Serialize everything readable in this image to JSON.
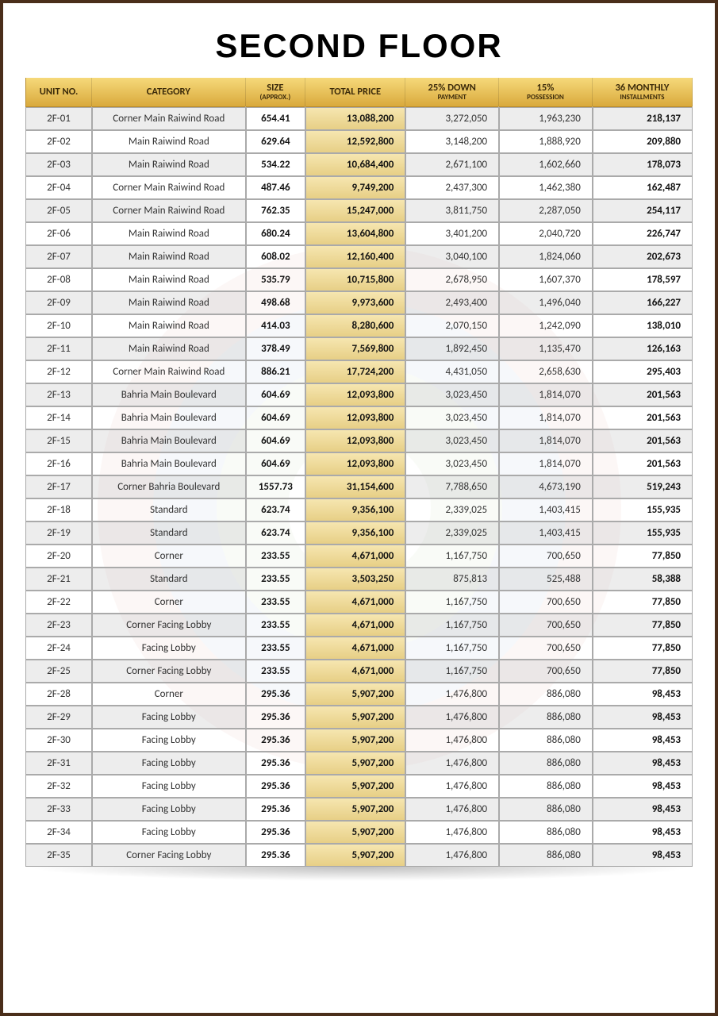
{
  "page_title": "SECOND FLOOR",
  "columns": [
    {
      "key": "unit",
      "label": "UNIT NO.",
      "sub": ""
    },
    {
      "key": "cat",
      "label": "CATEGORY",
      "sub": ""
    },
    {
      "key": "size",
      "label": "SIZE",
      "sub": "(APPROX.)"
    },
    {
      "key": "price",
      "label": "TOTAL PRICE",
      "sub": ""
    },
    {
      "key": "down",
      "label": "25% DOWN",
      "sub": "PAYMENT"
    },
    {
      "key": "poss",
      "label": "15%",
      "sub": "POSSESSION"
    },
    {
      "key": "inst",
      "label": "36 MONTHLY",
      "sub": "INSTALLMENTS"
    }
  ],
  "rows": [
    {
      "unit": "2F-01",
      "cat": "Corner Main Raiwind Road",
      "size": "654.41",
      "price": "13,088,200",
      "down": "3,272,050",
      "poss": "1,963,230",
      "inst": "218,137"
    },
    {
      "unit": "2F-02",
      "cat": "Main Raiwind Road",
      "size": "629.64",
      "price": "12,592,800",
      "down": "3,148,200",
      "poss": "1,888,920",
      "inst": "209,880"
    },
    {
      "unit": "2F-03",
      "cat": "Main Raiwind Road",
      "size": "534.22",
      "price": "10,684,400",
      "down": "2,671,100",
      "poss": "1,602,660",
      "inst": "178,073"
    },
    {
      "unit": "2F-04",
      "cat": "Corner Main Raiwind Road",
      "size": "487.46",
      "price": "9,749,200",
      "down": "2,437,300",
      "poss": "1,462,380",
      "inst": "162,487"
    },
    {
      "unit": "2F-05",
      "cat": "Corner Main Raiwind Road",
      "size": "762.35",
      "price": "15,247,000",
      "down": "3,811,750",
      "poss": "2,287,050",
      "inst": "254,117"
    },
    {
      "unit": "2F-06",
      "cat": "Main Raiwind Road",
      "size": "680.24",
      "price": "13,604,800",
      "down": "3,401,200",
      "poss": "2,040,720",
      "inst": "226,747"
    },
    {
      "unit": "2F-07",
      "cat": "Main Raiwind Road",
      "size": "608.02",
      "price": "12,160,400",
      "down": "3,040,100",
      "poss": "1,824,060",
      "inst": "202,673"
    },
    {
      "unit": "2F-08",
      "cat": "Main Raiwind Road",
      "size": "535.79",
      "price": "10,715,800",
      "down": "2,678,950",
      "poss": "1,607,370",
      "inst": "178,597"
    },
    {
      "unit": "2F-09",
      "cat": "Main Raiwind Road",
      "size": "498.68",
      "price": "9,973,600",
      "down": "2,493,400",
      "poss": "1,496,040",
      "inst": "166,227"
    },
    {
      "unit": "2F-10",
      "cat": "Main Raiwind Road",
      "size": "414.03",
      "price": "8,280,600",
      "down": "2,070,150",
      "poss": "1,242,090",
      "inst": "138,010"
    },
    {
      "unit": "2F-11",
      "cat": "Main Raiwind Road",
      "size": "378.49",
      "price": "7,569,800",
      "down": "1,892,450",
      "poss": "1,135,470",
      "inst": "126,163"
    },
    {
      "unit": "2F-12",
      "cat": "Corner Main Raiwind Road",
      "size": "886.21",
      "price": "17,724,200",
      "down": "4,431,050",
      "poss": "2,658,630",
      "inst": "295,403"
    },
    {
      "unit": "2F-13",
      "cat": "Bahria Main Boulevard",
      "size": "604.69",
      "price": "12,093,800",
      "down": "3,023,450",
      "poss": "1,814,070",
      "inst": "201,563"
    },
    {
      "unit": "2F-14",
      "cat": "Bahria Main Boulevard",
      "size": "604.69",
      "price": "12,093,800",
      "down": "3,023,450",
      "poss": "1,814,070",
      "inst": "201,563"
    },
    {
      "unit": "2F-15",
      "cat": "Bahria Main Boulevard",
      "size": "604.69",
      "price": "12,093,800",
      "down": "3,023,450",
      "poss": "1,814,070",
      "inst": "201,563"
    },
    {
      "unit": "2F-16",
      "cat": "Bahria Main Boulevard",
      "size": "604.69",
      "price": "12,093,800",
      "down": "3,023,450",
      "poss": "1,814,070",
      "inst": "201,563"
    },
    {
      "unit": "2F-17",
      "cat": "Corner Bahria Boulevard",
      "size": "1557.73",
      "price": "31,154,600",
      "down": "7,788,650",
      "poss": "4,673,190",
      "inst": "519,243"
    },
    {
      "unit": "2F-18",
      "cat": "Standard",
      "size": "623.74",
      "price": "9,356,100",
      "down": "2,339,025",
      "poss": "1,403,415",
      "inst": "155,935"
    },
    {
      "unit": "2F-19",
      "cat": "Standard",
      "size": "623.74",
      "price": "9,356,100",
      "down": "2,339,025",
      "poss": "1,403,415",
      "inst": "155,935"
    },
    {
      "unit": "2F-20",
      "cat": "Corner",
      "size": "233.55",
      "price": "4,671,000",
      "down": "1,167,750",
      "poss": "700,650",
      "inst": "77,850"
    },
    {
      "unit": "2F-21",
      "cat": "Standard",
      "size": "233.55",
      "price": "3,503,250",
      "down": "875,813",
      "poss": "525,488",
      "inst": "58,388"
    },
    {
      "unit": "2F-22",
      "cat": "Corner",
      "size": "233.55",
      "price": "4,671,000",
      "down": "1,167,750",
      "poss": "700,650",
      "inst": "77,850"
    },
    {
      "unit": "2F-23",
      "cat": "Corner Facing Lobby",
      "size": "233.55",
      "price": "4,671,000",
      "down": "1,167,750",
      "poss": "700,650",
      "inst": "77,850"
    },
    {
      "unit": "2F-24",
      "cat": "Facing Lobby",
      "size": "233.55",
      "price": "4,671,000",
      "down": "1,167,750",
      "poss": "700,650",
      "inst": "77,850"
    },
    {
      "unit": "2F-25",
      "cat": "Corner Facing Lobby",
      "size": "233.55",
      "price": "4,671,000",
      "down": "1,167,750",
      "poss": "700,650",
      "inst": "77,850"
    },
    {
      "unit": "2F-28",
      "cat": "Corner",
      "size": "295.36",
      "price": "5,907,200",
      "down": "1,476,800",
      "poss": "886,080",
      "inst": "98,453"
    },
    {
      "unit": "2F-29",
      "cat": "Facing Lobby",
      "size": "295.36",
      "price": "5,907,200",
      "down": "1,476,800",
      "poss": "886,080",
      "inst": "98,453"
    },
    {
      "unit": "2F-30",
      "cat": "Facing Lobby",
      "size": "295.36",
      "price": "5,907,200",
      "down": "1,476,800",
      "poss": "886,080",
      "inst": "98,453"
    },
    {
      "unit": "2F-31",
      "cat": "Facing Lobby",
      "size": "295.36",
      "price": "5,907,200",
      "down": "1,476,800",
      "poss": "886,080",
      "inst": "98,453"
    },
    {
      "unit": "2F-32",
      "cat": "Facing Lobby",
      "size": "295.36",
      "price": "5,907,200",
      "down": "1,476,800",
      "poss": "886,080",
      "inst": "98,453"
    },
    {
      "unit": "2F-33",
      "cat": "Facing Lobby",
      "size": "295.36",
      "price": "5,907,200",
      "down": "1,476,800",
      "poss": "886,080",
      "inst": "98,453"
    },
    {
      "unit": "2F-34",
      "cat": "Facing Lobby",
      "size": "295.36",
      "price": "5,907,200",
      "down": "1,476,800",
      "poss": "886,080",
      "inst": "98,453"
    },
    {
      "unit": "2F-35",
      "cat": "Corner Facing Lobby",
      "size": "295.36",
      "price": "5,907,200",
      "down": "1,476,800",
      "poss": "886,080",
      "inst": "98,453"
    }
  ],
  "style": {
    "border_color": "#4a2e1a",
    "header_gradient_top": "#f6d97a",
    "header_gradient_bottom": "#d9a93c",
    "price_gradient_top": "#f6e6b0",
    "price_gradient_bottom": "#e7cf86",
    "title_fontsize": 42,
    "body_fontsize": 13,
    "header_fontsize": 12.5
  }
}
